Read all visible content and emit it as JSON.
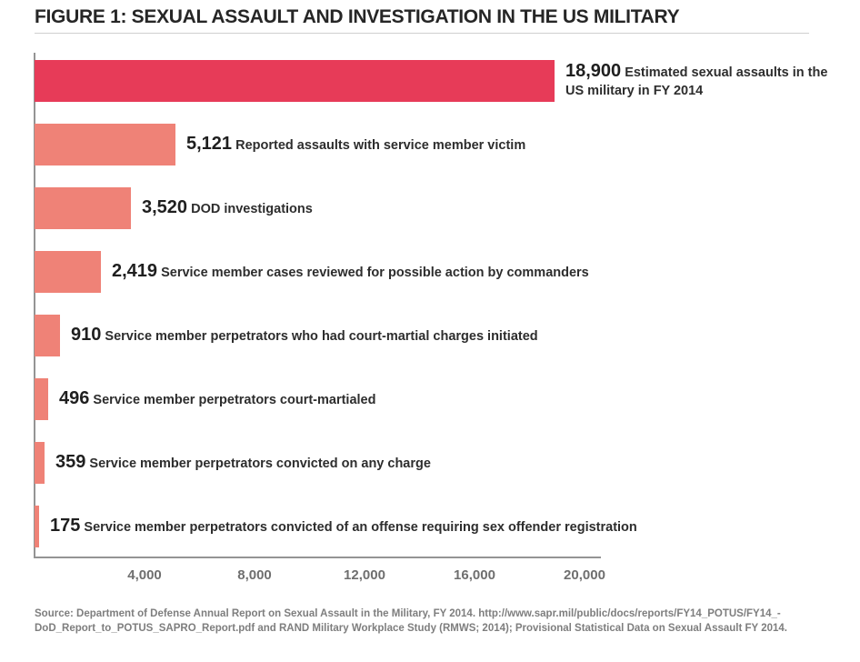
{
  "figure_title": "FIGURE 1: SEXUAL ASSAULT AND INVESTIGATION IN THE US MILITARY",
  "chart_data": {
    "type": "bar",
    "orientation": "horizontal",
    "title": "FIGURE 1: SEXUAL ASSAULT AND INVESTIGATION IN THE US MILITARY",
    "xlim": [
      0,
      20000
    ],
    "x_ticks": [
      {
        "value": 4000,
        "label": "4,000"
      },
      {
        "value": 8000,
        "label": "8,000"
      },
      {
        "value": 12000,
        "label": "12,000"
      },
      {
        "value": 16000,
        "label": "16,000"
      },
      {
        "value": 20000,
        "label": "20,000"
      }
    ],
    "grid": false,
    "legend": false,
    "bars": [
      {
        "value": 18900,
        "value_label": "18,900",
        "label": "Estimated sexual assaults in the US military in FY 2014",
        "color": "#e73b58",
        "label_wraps": true
      },
      {
        "value": 5121,
        "value_label": "5,121",
        "label": "Reported assaults with service member victim",
        "color": "#ef8277",
        "label_wraps": false
      },
      {
        "value": 3520,
        "value_label": "3,520",
        "label": "DOD investigations",
        "color": "#ef8277",
        "label_wraps": false
      },
      {
        "value": 2419,
        "value_label": "2,419",
        "label": "Service member cases reviewed for possible action by commanders",
        "color": "#ef8277",
        "label_wraps": false
      },
      {
        "value": 910,
        "value_label": "910",
        "label": "Service member perpetrators who had court-martial charges initiated",
        "color": "#ef8277",
        "label_wraps": false
      },
      {
        "value": 496,
        "value_label": "496",
        "label": "Service member perpetrators court-martialed",
        "color": "#ef8277",
        "label_wraps": false
      },
      {
        "value": 359,
        "value_label": "359",
        "label": "Service member perpetrators convicted on any charge",
        "color": "#ef8277",
        "label_wraps": false
      },
      {
        "value": 175,
        "value_label": "175",
        "label": "Service member perpetrators convicted of an offense requiring sex offender registration",
        "color": "#ef8277",
        "label_wraps": false
      }
    ]
  },
  "source": {
    "line1": "Source: Department of Defense Annual Report on Sexual Assault in the Military, FY 2014. http://www.sapr.mil/public/docs/reports/FY14_POTUS/FY14_-",
    "line2": "DoD_Report_to_POTUS_SAPRO_Report.pdf and RAND Military Workplace Study (RMWS; 2014); Provisional Statistical Data on Sexual Assault FY 2014."
  },
  "colors": {
    "accent_bar": "#e73b58",
    "bar": "#ef8277",
    "axis": "#949494",
    "title_text": "#262626",
    "tick_text": "#6f6f6f",
    "source_text": "#7e7e7e"
  }
}
